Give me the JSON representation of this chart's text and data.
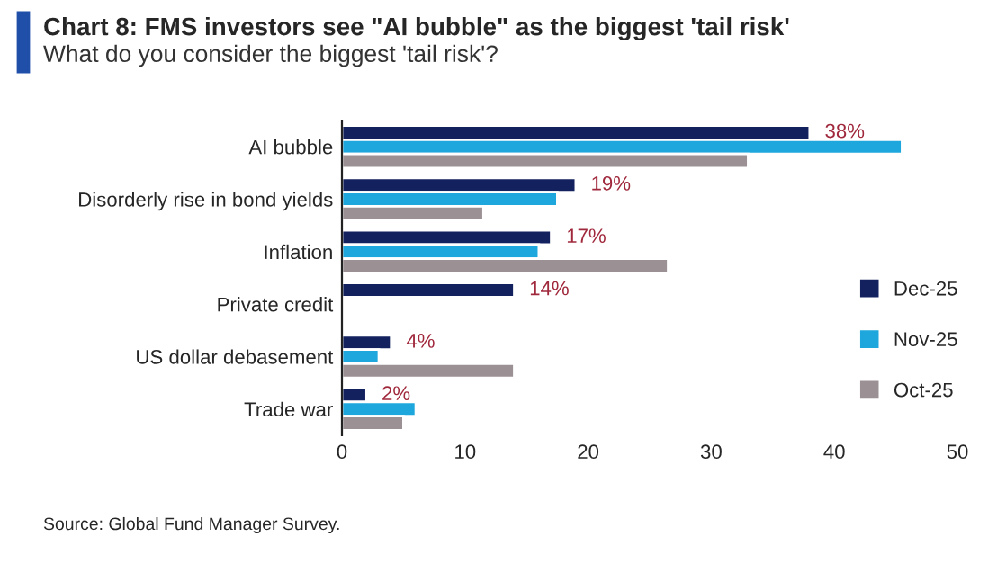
{
  "chart_data": {
    "type": "bar",
    "orientation": "horizontal",
    "title": "Chart 8: FMS investors see \"AI bubble\" as the biggest 'tail risk'",
    "subtitle": "What do you consider the biggest 'tail risk'?",
    "categories": [
      "AI bubble",
      "Disorderly rise in bond yields",
      "Inflation",
      "Private credit",
      "US dollar debasement",
      "Trade war"
    ],
    "series": [
      {
        "name": "Dec-25",
        "color": "#13215e",
        "values": [
          38,
          19,
          17,
          14,
          4,
          2
        ],
        "value_labels": [
          "38%",
          "19%",
          "17%",
          "14%",
          "4%",
          "2%"
        ]
      },
      {
        "name": "Nov-25",
        "color": "#1ea7dc",
        "values": [
          45.5,
          17.5,
          16,
          null,
          3,
          6
        ]
      },
      {
        "name": "Oct-25",
        "color": "#9b9093",
        "values": [
          33,
          11.5,
          26.5,
          null,
          14,
          5
        ]
      }
    ],
    "xlim": [
      0,
      50
    ],
    "xticks": [
      0,
      10,
      20,
      30,
      40,
      50
    ],
    "grid": false,
    "legend": "right",
    "annotations": [
      "Source: Global Fund Manager Survey."
    ]
  }
}
